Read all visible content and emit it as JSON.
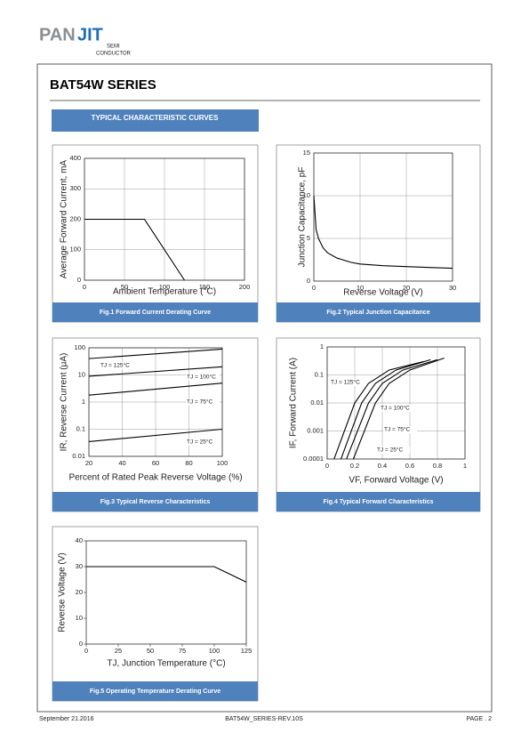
{
  "header": {
    "logo_left": "PAN",
    "logo_right": "JIT",
    "logo_sub_1": "SEMI",
    "logo_sub_2": "CONDUCTOR"
  },
  "title": "BAT54W SERIES",
  "section_title": "TYPICAL CHARACTERISTIC CURVES",
  "chart_data": [
    {
      "type": "line",
      "title": "Fig.1 Forward Current Derating Curve",
      "xlabel": "Ambient Temperature (°C)",
      "ylabel": "Average Forward Current, mA",
      "xlim": [
        0,
        200
      ],
      "xticks": [
        0,
        50,
        100,
        150,
        200
      ],
      "ylim": [
        0,
        400
      ],
      "yticks": [
        0,
        100,
        200,
        300,
        400
      ],
      "grid": true,
      "series": [
        {
          "color": "#000000",
          "x": [
            0,
            75,
            125
          ],
          "values": [
            200,
            200,
            0
          ]
        }
      ]
    },
    {
      "type": "line",
      "title": "Fig.2 Typical Junction Capacitance",
      "xlabel": "Reverse Voltage (V)",
      "ylabel": "Junction Capacitance, pF",
      "xlim": [
        0,
        30
      ],
      "xticks": [
        0,
        10,
        20,
        30
      ],
      "ylim": [
        0,
        15
      ],
      "yticks": [
        0,
        5,
        10,
        15
      ],
      "grid": true,
      "series": [
        {
          "color": "#000000",
          "x": [
            0,
            0.5,
            1,
            2,
            3,
            5,
            8,
            10,
            15,
            20,
            25,
            30
          ],
          "values": [
            10,
            6,
            5,
            3.9,
            3.3,
            2.7,
            2.2,
            2.0,
            1.8,
            1.7,
            1.6,
            1.5
          ]
        }
      ]
    },
    {
      "type": "line",
      "title": "Fig.3 Typical Reverse Characteristics",
      "xlabel": "Percent of Rated Peak Reverse Voltage (%)",
      "ylabel": "IR, Reverse Current (μA)",
      "xlim": [
        20,
        100
      ],
      "xticks": [
        20,
        40,
        60,
        80,
        100
      ],
      "ylim": [
        0.01,
        100
      ],
      "yticks": [
        0.01,
        0.1,
        1,
        10,
        100
      ],
      "yscale": "log",
      "grid": true,
      "series": [
        {
          "name": "TJ = 125°C",
          "color": "#000000",
          "x": [
            20,
            100
          ],
          "values": [
            40,
            90
          ]
        },
        {
          "name": "TJ = 100°C",
          "color": "#000000",
          "x": [
            20,
            100
          ],
          "values": [
            9,
            20
          ]
        },
        {
          "name": "TJ = 75°C",
          "color": "#000000",
          "x": [
            20,
            100
          ],
          "values": [
            1.8,
            5
          ]
        },
        {
          "name": "TJ = 25°C",
          "color": "#000000",
          "x": [
            20,
            100
          ],
          "values": [
            0.035,
            0.1
          ]
        }
      ]
    },
    {
      "type": "line",
      "title": "Fig.4 Typical Forward Characteristics",
      "xlabel": "VF, Forward Voltage (V)",
      "ylabel": "IF, Forward Current (A)",
      "xlim": [
        0,
        1
      ],
      "xticks": [
        0,
        0.2,
        0.4,
        0.6,
        0.8,
        1
      ],
      "ylim": [
        0.0001,
        1
      ],
      "yticks": [
        0.0001,
        0.001,
        0.01,
        0.1,
        1
      ],
      "yscale": "log",
      "grid": true,
      "series": [
        {
          "name": "TJ = 125°C",
          "color": "#000000",
          "x": [
            0.05,
            0.2,
            0.3,
            0.45,
            0.7
          ],
          "values": [
            0.0001,
            0.01,
            0.05,
            0.15,
            0.3
          ]
        },
        {
          "name": "TJ = 100°C",
          "color": "#000000",
          "x": [
            0.1,
            0.25,
            0.35,
            0.5,
            0.75
          ],
          "values": [
            0.0001,
            0.01,
            0.05,
            0.15,
            0.35
          ]
        },
        {
          "name": "TJ = 75°C",
          "color": "#000000",
          "x": [
            0.14,
            0.3,
            0.4,
            0.55,
            0.8
          ],
          "values": [
            0.0001,
            0.01,
            0.05,
            0.15,
            0.35
          ]
        },
        {
          "name": "TJ = 25°C",
          "color": "#000000",
          "x": [
            0.19,
            0.35,
            0.45,
            0.6,
            0.85
          ],
          "values": [
            0.0001,
            0.01,
            0.05,
            0.15,
            0.4
          ]
        }
      ]
    },
    {
      "type": "line",
      "title": "Fig.5 Operating Temperature Derating Curve",
      "xlabel": "TJ, Junction Temperature (°C)",
      "ylabel": "Reverse Voltage (V)",
      "xlim": [
        0,
        125
      ],
      "xticks": [
        0,
        25,
        50,
        75,
        100,
        125
      ],
      "ylim": [
        0,
        40
      ],
      "yticks": [
        0,
        10,
        20,
        30,
        40
      ],
      "grid": false,
      "series": [
        {
          "color": "#000000",
          "x": [
            0,
            100,
            125
          ],
          "values": [
            30,
            30,
            24
          ]
        }
      ]
    }
  ],
  "footer": {
    "date": "September 21.2016",
    "doc": "BAT54W_SERIES-REV.10S",
    "page": "PAGE . 2"
  }
}
